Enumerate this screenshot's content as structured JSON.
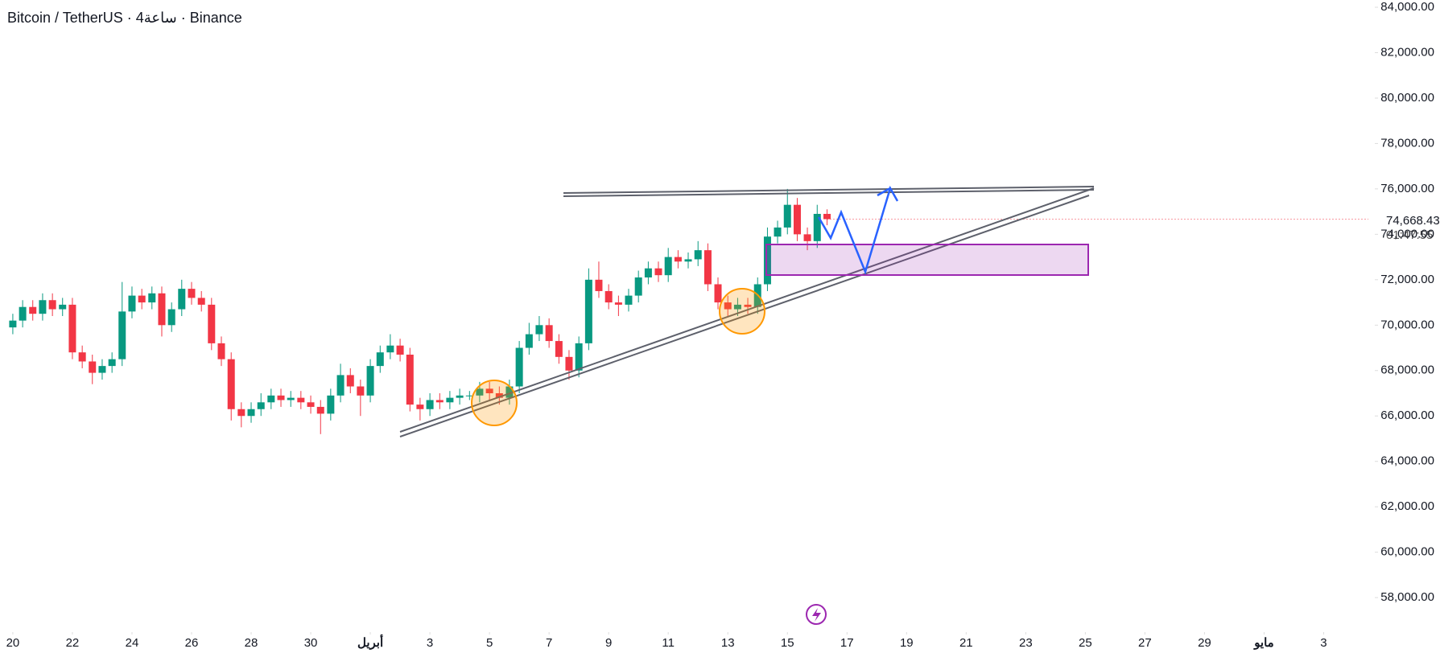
{
  "chart_data": {
    "type": "candlestick",
    "title": "Bitcoin / TetherUS · 4ساعة · Binance",
    "up_color": "#089981",
    "down_color": "#f23645",
    "x": [
      0,
      0.33,
      0.67,
      1,
      1.33,
      1.67,
      2,
      2.33,
      2.67,
      3,
      3.33,
      3.67,
      4,
      4.33,
      4.67,
      5,
      5.33,
      5.67,
      6,
      6.33,
      6.67,
      7,
      7.33,
      7.67,
      8,
      8.33,
      8.67,
      9,
      9.33,
      9.67,
      10,
      10.33,
      10.67,
      11,
      11.33,
      11.67,
      12,
      12.33,
      12.67,
      13,
      13.33,
      13.67,
      14,
      14.33,
      14.67,
      15,
      15.33,
      15.67,
      16,
      16.33,
      16.67,
      17,
      17.33,
      17.67,
      18,
      18.33,
      18.67,
      19,
      19.33,
      19.67,
      20,
      20.33,
      20.67,
      21,
      21.33,
      21.67,
      22,
      22.33,
      22.67,
      23,
      23.33,
      23.67,
      24,
      24.33,
      24.67,
      25,
      25.33,
      25.67,
      26,
      26.33,
      26.67,
      27,
      27.33
    ],
    "open": [
      69900,
      70200,
      70800,
      70500,
      71100,
      70700,
      70900,
      68800,
      68400,
      67900,
      68200,
      68500,
      70600,
      71300,
      71000,
      71400,
      70000,
      70700,
      71600,
      71200,
      70900,
      69200,
      68500,
      66300,
      66000,
      66300,
      66600,
      66900,
      66700,
      66800,
      66600,
      66400,
      66100,
      66900,
      67800,
      67300,
      66900,
      68200,
      68800,
      69100,
      68700,
      66500,
      66300,
      66700,
      66600,
      66800,
      66900,
      66900,
      67200,
      67000,
      66800,
      67300,
      69000,
      69600,
      70000,
      69300,
      68600,
      68000,
      69200,
      72000,
      71500,
      71000,
      70900,
      71300,
      72100,
      72500,
      72200,
      73000,
      72800,
      72900,
      73300,
      71800,
      71000,
      70700,
      70900,
      70800,
      71800,
      73900,
      74300,
      75300,
      74000,
      73700,
      74900
    ],
    "high": [
      70500,
      71100,
      71100,
      71400,
      71400,
      71200,
      71200,
      69100,
      68700,
      68500,
      68800,
      71900,
      71700,
      71600,
      71700,
      71700,
      71000,
      72000,
      71900,
      71500,
      71200,
      69500,
      68800,
      66600,
      66600,
      67000,
      67200,
      67200,
      67100,
      67100,
      66900,
      66700,
      67200,
      68300,
      68100,
      67600,
      68500,
      69100,
      69600,
      69400,
      69000,
      66800,
      67000,
      67000,
      67100,
      67200,
      67100,
      67500,
      67500,
      67300,
      67600,
      69300,
      70100,
      70400,
      70300,
      69600,
      68900,
      69500,
      72500,
      72800,
      71800,
      71300,
      71600,
      72400,
      72800,
      72800,
      73400,
      73300,
      73200,
      73700,
      73600,
      72100,
      71300,
      71200,
      71200,
      72100,
      74300,
      74600,
      76000,
      75600,
      74300,
      75300,
      75100
    ],
    "low": [
      69600,
      69900,
      70200,
      70200,
      70400,
      70400,
      68500,
      68100,
      67400,
      67600,
      67900,
      68200,
      70300,
      70700,
      70700,
      69500,
      69700,
      70400,
      70900,
      70600,
      68900,
      68200,
      65800,
      65500,
      65700,
      66000,
      66300,
      66400,
      66400,
      66300,
      66100,
      65200,
      65800,
      66600,
      67000,
      66000,
      66600,
      67900,
      68500,
      68400,
      66200,
      65800,
      66000,
      66300,
      66300,
      66500,
      66700,
      66600,
      66700,
      66500,
      66500,
      67000,
      68700,
      69300,
      69000,
      68300,
      67600,
      67700,
      68900,
      71200,
      70700,
      70400,
      70600,
      71000,
      71800,
      71900,
      71900,
      72500,
      72500,
      72600,
      71500,
      70700,
      70400,
      70400,
      70500,
      70500,
      71500,
      73600,
      74000,
      73700,
      73300,
      73400,
      74400
    ],
    "close": [
      70200,
      70800,
      70500,
      71100,
      70700,
      70900,
      68800,
      68400,
      67900,
      68200,
      68500,
      70600,
      71300,
      71000,
      71400,
      70000,
      70700,
      71600,
      71200,
      70900,
      69200,
      68500,
      66300,
      66000,
      66300,
      66600,
      66900,
      66700,
      66800,
      66600,
      66400,
      66100,
      66900,
      67800,
      67300,
      66900,
      68200,
      68800,
      69100,
      68700,
      66500,
      66300,
      66700,
      66600,
      66800,
      66900,
      66900,
      67200,
      67000,
      66800,
      67300,
      69000,
      69600,
      70000,
      69300,
      68600,
      68000,
      69200,
      72000,
      71500,
      71000,
      70900,
      71300,
      72100,
      72500,
      72200,
      73000,
      72800,
      72900,
      73300,
      71800,
      71000,
      70700,
      70900,
      70800,
      71800,
      73900,
      74300,
      75300,
      74000,
      73700,
      74900,
      74668
    ],
    "xlim": [
      -0.43,
      45.5
    ],
    "xticks": [
      {
        "value": 0,
        "label": "20"
      },
      {
        "value": 2,
        "label": "22"
      },
      {
        "value": 4,
        "label": "24"
      },
      {
        "value": 6,
        "label": "26"
      },
      {
        "value": 8,
        "label": "28"
      },
      {
        "value": 10,
        "label": "30"
      },
      {
        "value": 12,
        "label": "أبريل"
      },
      {
        "value": 14,
        "label": "3"
      },
      {
        "value": 16,
        "label": "5"
      },
      {
        "value": 18,
        "label": "7"
      },
      {
        "value": 20,
        "label": "9"
      },
      {
        "value": 22,
        "label": "11"
      },
      {
        "value": 24,
        "label": "13"
      },
      {
        "value": 26,
        "label": "15"
      },
      {
        "value": 28,
        "label": "17"
      },
      {
        "value": 30,
        "label": "19"
      },
      {
        "value": 32,
        "label": "21"
      },
      {
        "value": 34,
        "label": "23"
      },
      {
        "value": 36,
        "label": "25"
      },
      {
        "value": 38,
        "label": "27"
      },
      {
        "value": 40,
        "label": "29"
      },
      {
        "value": 42,
        "label": "مايو"
      },
      {
        "value": 44,
        "label": "3"
      }
    ],
    "ylim": [
      56870,
      84320
    ],
    "yticks": [
      {
        "value": 58000,
        "label": "58,000.00"
      },
      {
        "value": 60000,
        "label": "60,000.00"
      },
      {
        "value": 62000,
        "label": "62,000.00"
      },
      {
        "value": 64000,
        "label": "64,000.00"
      },
      {
        "value": 66000,
        "label": "66,000.00"
      },
      {
        "value": 68000,
        "label": "68,000.00"
      },
      {
        "value": 70000,
        "label": "70,000.00"
      },
      {
        "value": 72000,
        "label": "72,000.00"
      },
      {
        "value": 74000,
        "label": "74,000.00"
      },
      {
        "value": 76000,
        "label": "76,000.00"
      },
      {
        "value": 78000,
        "label": "78,000.00"
      },
      {
        "value": 80000,
        "label": "80,000.00"
      },
      {
        "value": 82000,
        "label": "82,000.00"
      },
      {
        "value": 84000,
        "label": "84,000.00"
      }
    ],
    "last_price": {
      "value": 74668.43,
      "label": "74,668.43"
    },
    "countdown": "01:47:55"
  }
}
